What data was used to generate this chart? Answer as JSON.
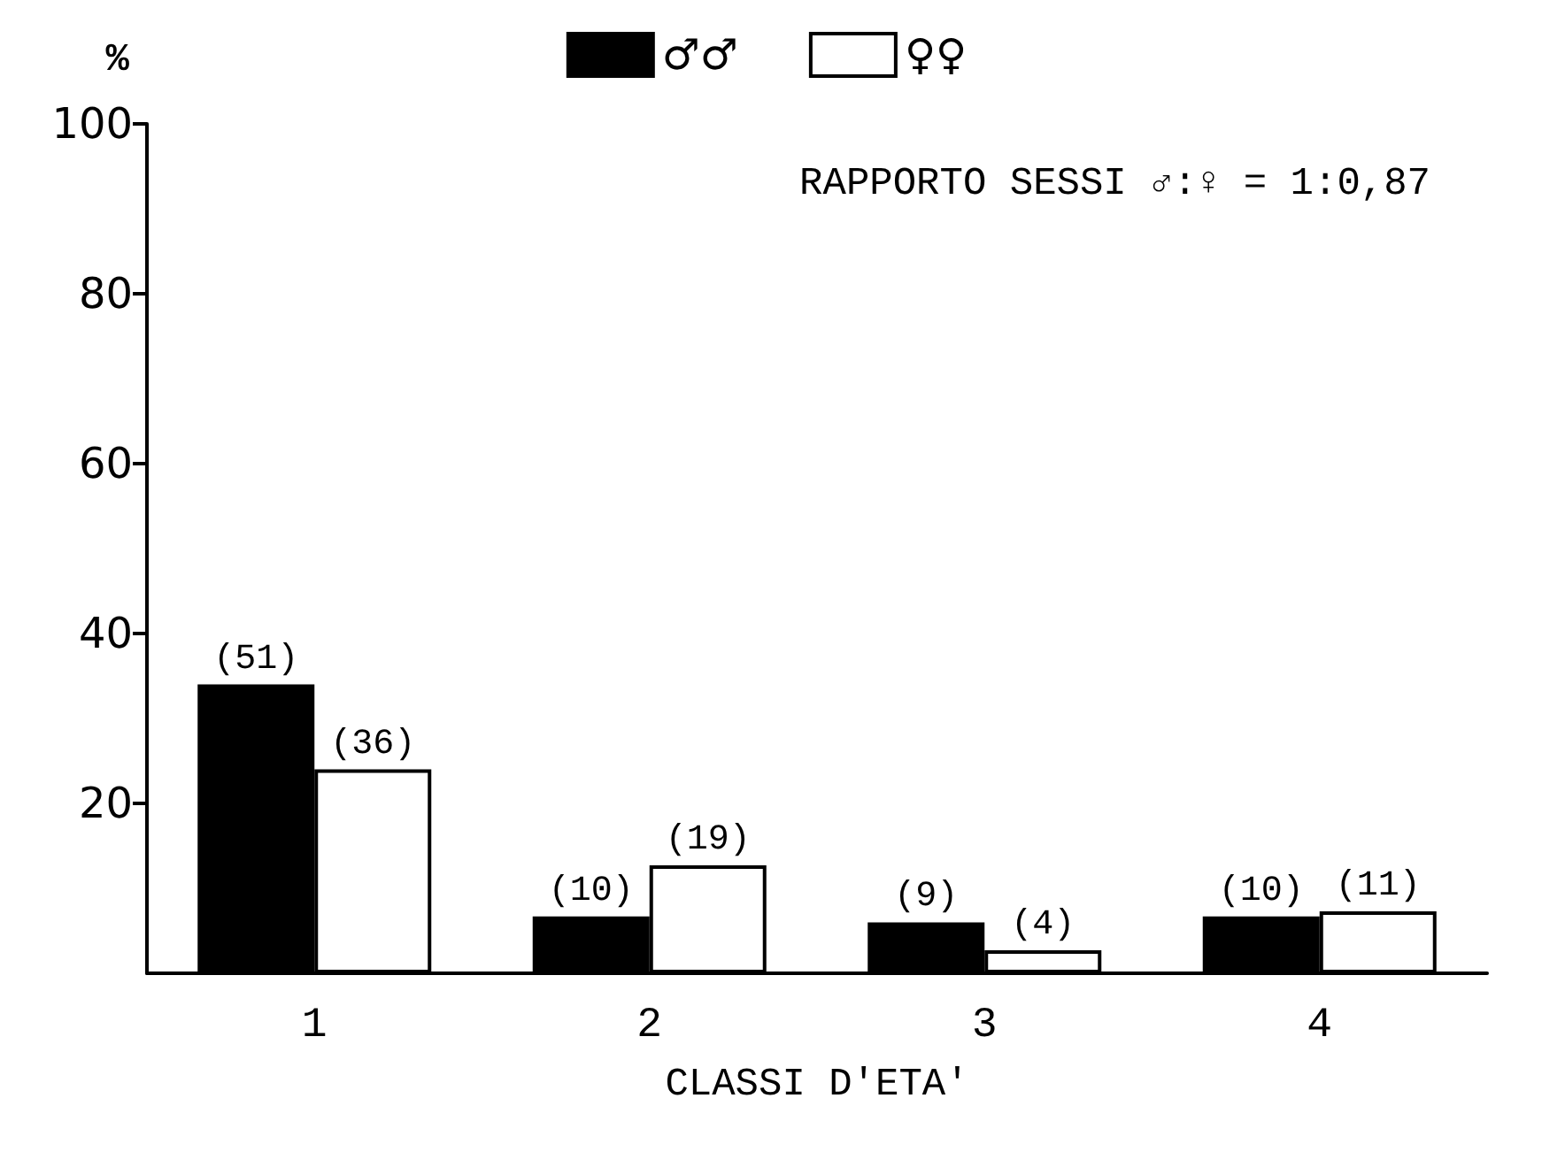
{
  "chart_data": {
    "type": "bar",
    "ylabel": "%",
    "xlabel": "CLASSI D'ETA'",
    "categories": [
      "1",
      "2",
      "3",
      "4"
    ],
    "series": [
      {
        "name": "♂♂",
        "color": "#000000",
        "values": [
          34,
          6.7,
          6,
          6.7
        ]
      },
      {
        "name": "♀♀",
        "color": "#ffffff",
        "values": [
          24,
          12.7,
          2.7,
          7.3
        ]
      }
    ],
    "ylim": [
      0,
      100
    ],
    "yticks": [
      20,
      40,
      60,
      80,
      100
    ],
    "grid": false,
    "legend": "top",
    "annotations": [
      "RAPPORTO SESSI ♂:♀ = 1:0,87",
      {
        "text": "(51)",
        "x": "1",
        "y": 34
      },
      {
        "text": "(36)",
        "x": "1",
        "y": 24
      },
      {
        "text": "(10)",
        "x": "2",
        "y": 6.7
      },
      {
        "text": "(19)",
        "x": "2",
        "y": 12.7
      },
      {
        "text": "(9)",
        "x": "3",
        "y": 6
      },
      {
        "text": "(4)",
        "x": "3",
        "y": 2.7
      },
      {
        "text": "(10)",
        "x": "4",
        "y": 6.7
      },
      {
        "text": "(11)",
        "x": "4",
        "y": 7.3
      }
    ]
  }
}
